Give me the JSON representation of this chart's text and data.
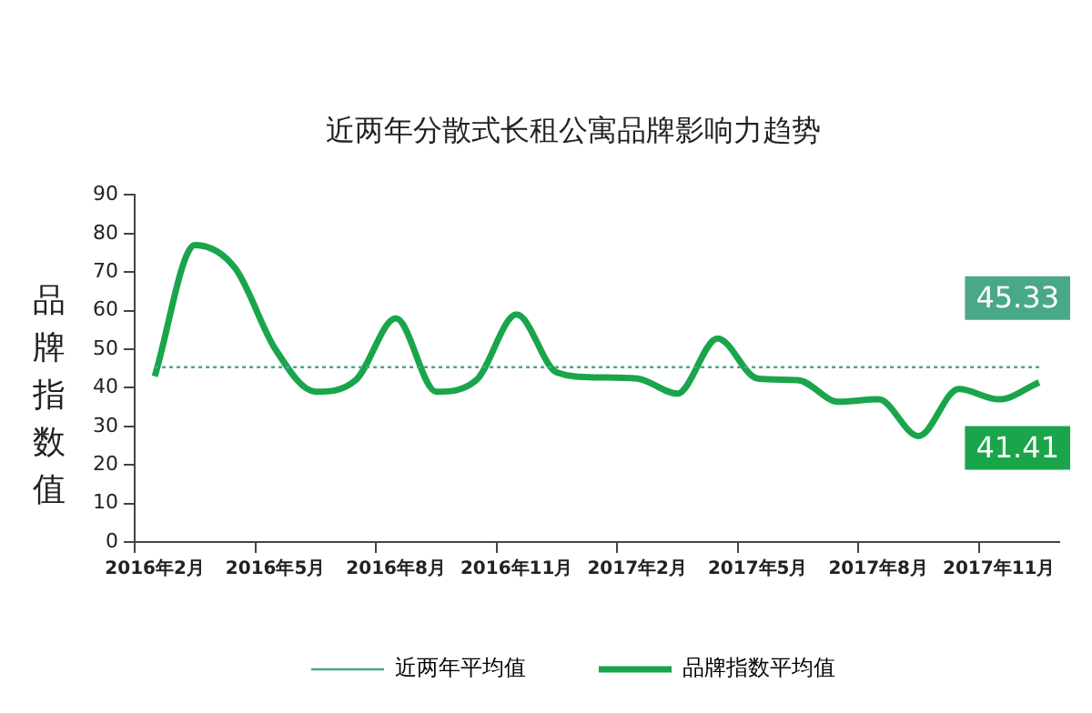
{
  "chart_data": {
    "type": "line",
    "title": "近两年分散式长租公寓品牌影响力趋势",
    "ylabel": "品牌指数值",
    "categories": [
      "2016年2月",
      null,
      null,
      "2016年5月",
      null,
      null,
      "2016年8月",
      null,
      null,
      "2016年11月",
      null,
      null,
      "2017年2月",
      null,
      null,
      "2017年5月",
      null,
      null,
      "2017年8月",
      null,
      null,
      "2017年11月",
      null
    ],
    "series": [
      {
        "name": "近两年平均值",
        "color": "#4aa88a",
        "line_style": "dotted",
        "values": [
          45.33,
          45.33,
          45.33,
          45.33,
          45.33,
          45.33,
          45.33,
          45.33,
          45.33,
          45.33,
          45.33,
          45.33,
          45.33,
          45.33,
          45.33,
          45.33,
          45.33,
          45.33,
          45.33,
          45.33,
          45.33,
          45.33,
          45.33
        ],
        "value_labels": [
          null,
          null,
          null,
          null,
          null,
          null,
          null,
          null,
          null,
          null,
          null,
          null,
          null,
          null,
          null,
          null,
          null,
          null,
          null,
          null,
          null,
          null,
          "45.33"
        ]
      },
      {
        "name": "品牌指数平均值",
        "color": "#1aa54b",
        "line_style": "solid",
        "values": [
          43,
          77,
          71,
          50,
          39,
          42,
          58,
          39,
          42,
          59,
          44,
          42.7,
          42.4,
          38.5,
          52.8,
          42.4,
          42,
          36.4,
          37,
          27.5,
          39.7,
          37,
          41.41
        ],
        "value_labels": [
          null,
          null,
          null,
          null,
          null,
          null,
          null,
          null,
          null,
          null,
          null,
          null,
          null,
          null,
          null,
          null,
          null,
          null,
          null,
          null,
          null,
          null,
          "41.41"
        ]
      }
    ],
    "ylim": [
      0,
      90
    ],
    "yticks": [
      0,
      10,
      20,
      30,
      40,
      50,
      60,
      70,
      80,
      90
    ],
    "grid": false,
    "legend": "bottom",
    "marker": "none"
  }
}
